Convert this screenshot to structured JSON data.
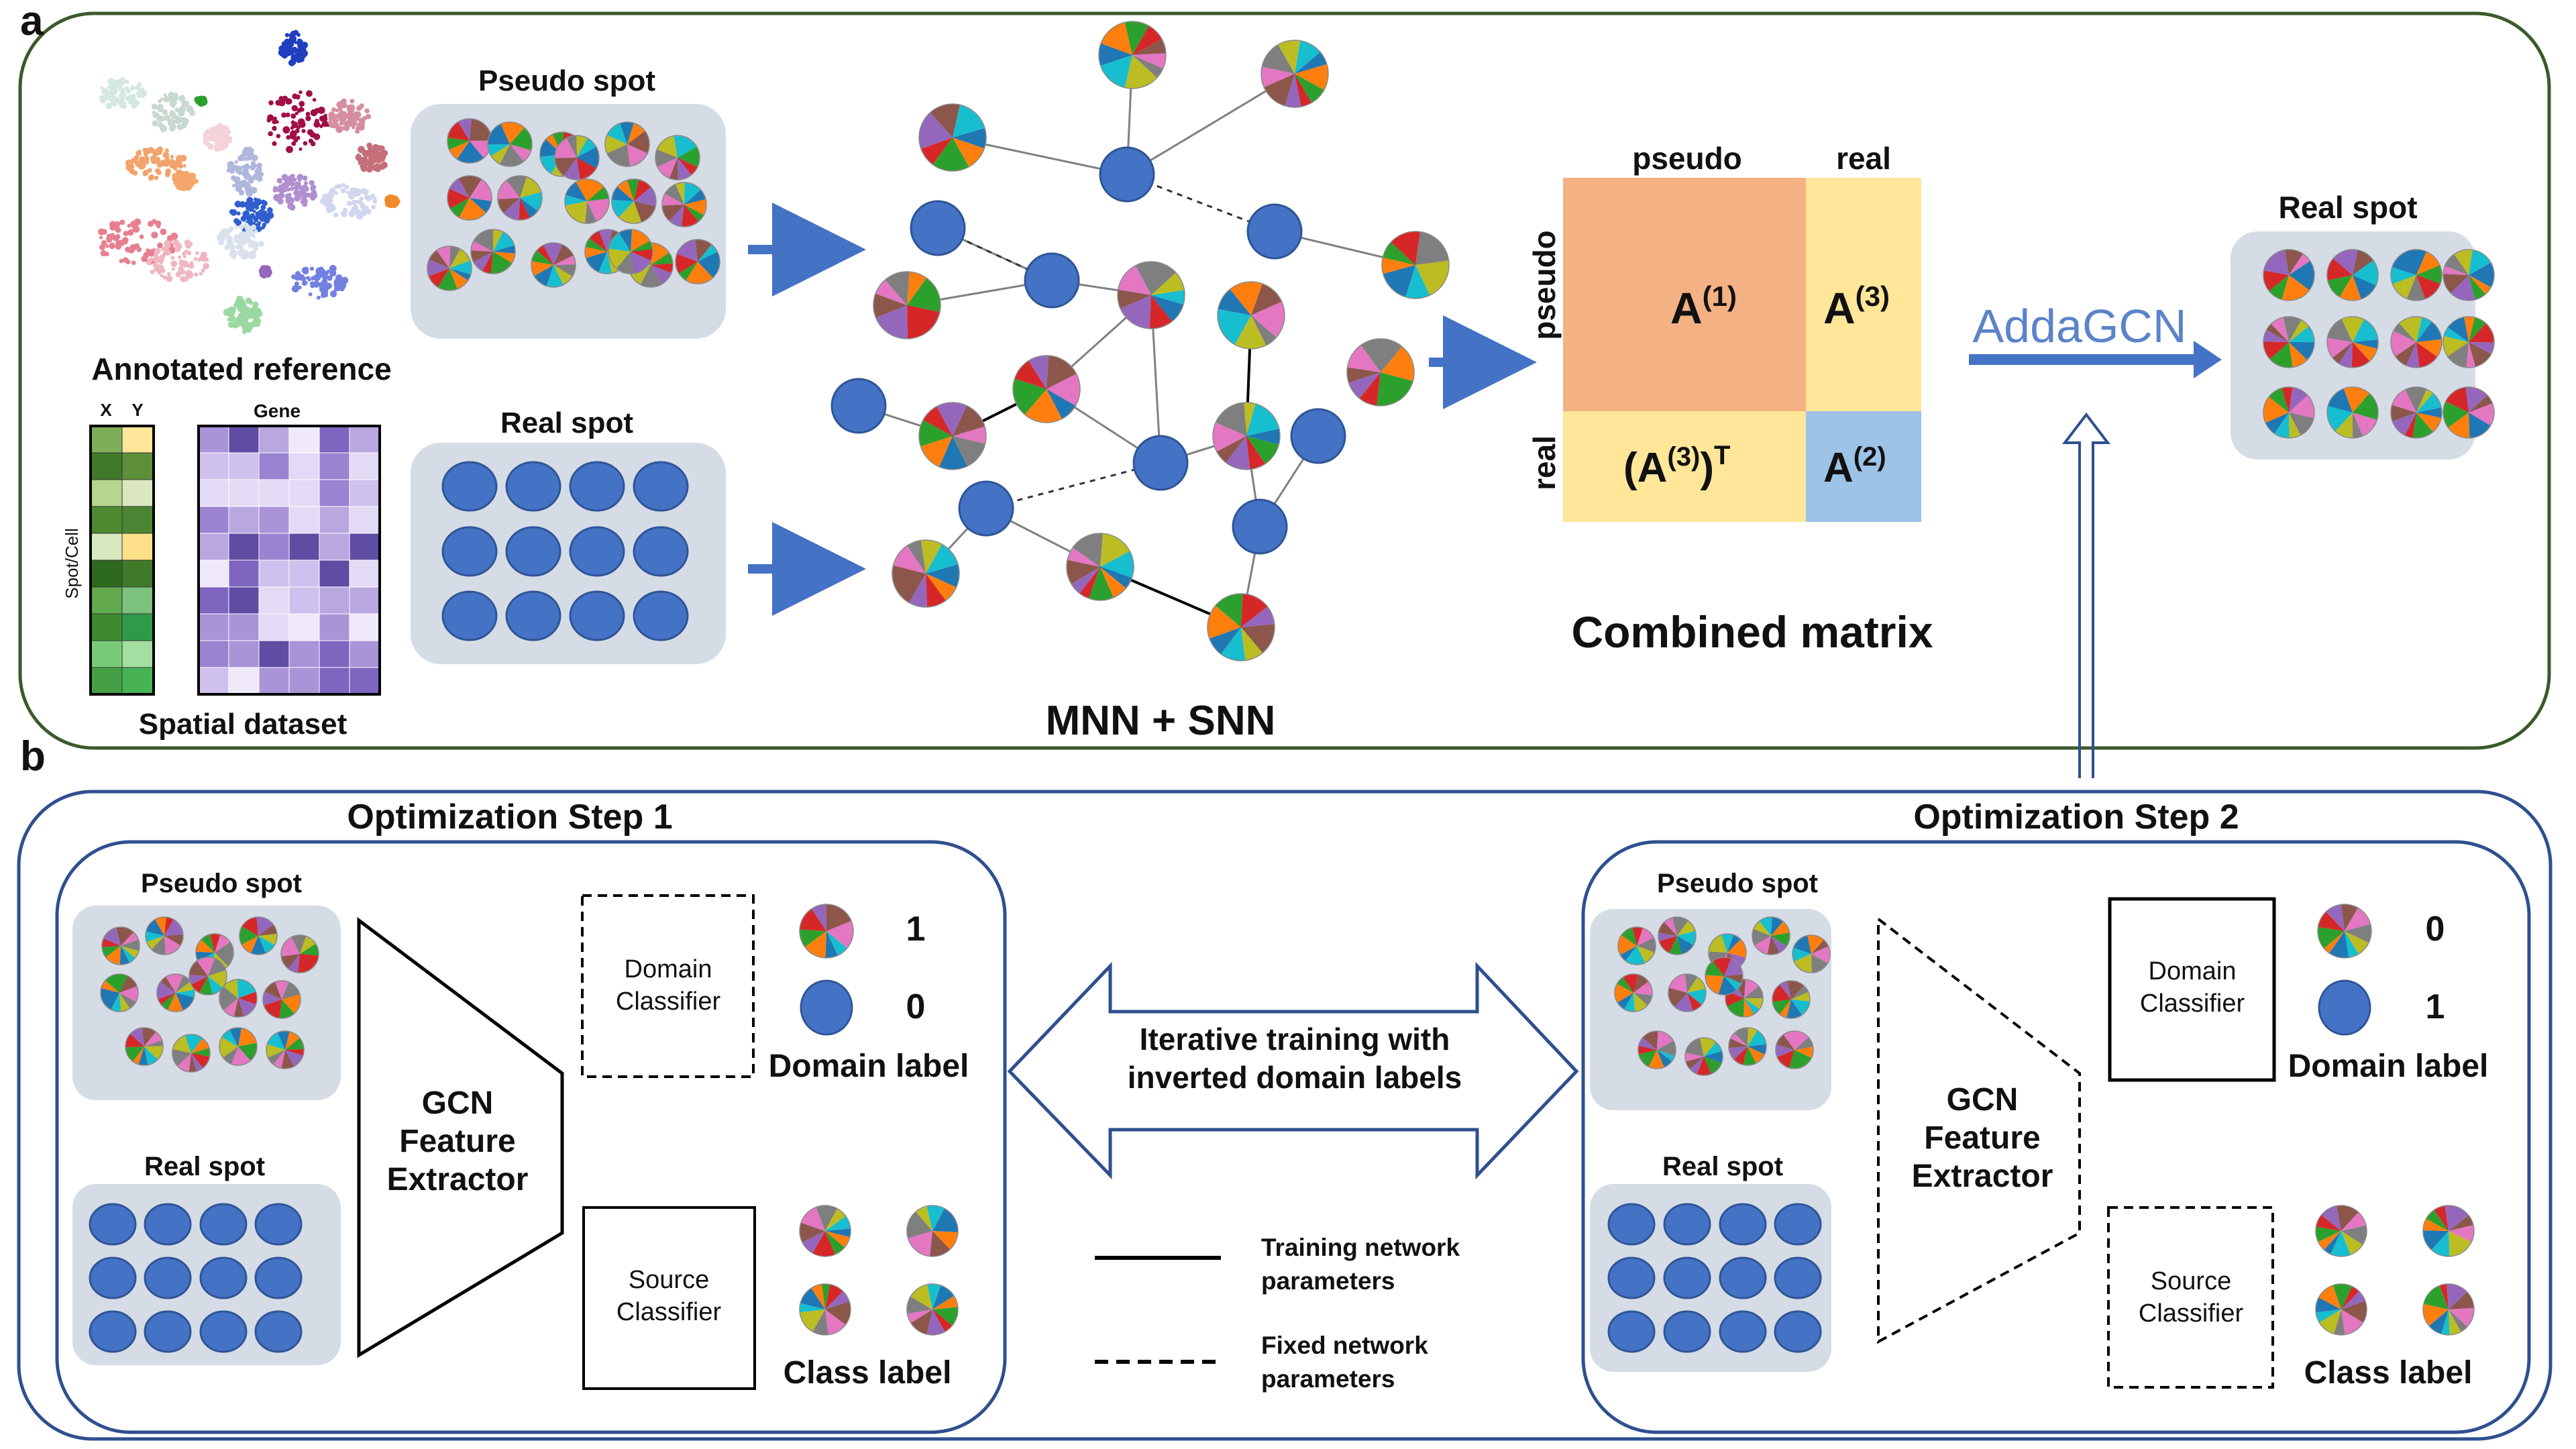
{
  "panel_a": {
    "letter": "a",
    "annotated_reference": "Annotated reference",
    "pseudo_spot": "Pseudo spot",
    "real_spot": "Real spot",
    "spatial_dataset": "Spatial dataset",
    "axis_x": "X",
    "axis_y": "Y",
    "gene": "Gene",
    "spot_cell": "Spot/Cell",
    "mnn_snn": "MNN + SNN",
    "matrix": {
      "col_pseudo": "pseudo",
      "col_real": "real",
      "row_pseudo": "pseudo",
      "row_real": "real",
      "a1": "A",
      "a1_sup": "(1)",
      "a3": "A",
      "a3_sup": "(3)",
      "a3t": "(A",
      "a3t_sup": "(3)",
      "a3t_close": ")",
      "a3t_T": "T",
      "a2": "A",
      "a2_sup": "(2)",
      "colors": {
        "a1": "#f4b183",
        "a3": "#ffe699",
        "a2": "#9dc3e6"
      }
    },
    "combined_matrix": "Combined matrix",
    "addagcn": "AddaGCN",
    "real_spot_result": "Real spot"
  },
  "panel_b": {
    "letter": "b",
    "step1": {
      "title": "Optimization Step 1",
      "pseudo_spot": "Pseudo spot",
      "real_spot": "Real spot",
      "extractor": [
        "GCN",
        "Feature",
        "Extractor"
      ],
      "domain_classifier": [
        "Domain",
        "Classifier"
      ],
      "source_classifier": [
        "Source",
        "Classifier"
      ],
      "label_pie": "1",
      "label_circle": "0",
      "domain_label": "Domain label",
      "class_label": "Class label"
    },
    "step2": {
      "title": "Optimization Step 2",
      "pseudo_spot": "Pseudo spot",
      "real_spot": "Real spot",
      "extractor": [
        "GCN",
        "Feature",
        "Extractor"
      ],
      "domain_classifier": [
        "Domain",
        "Classifier"
      ],
      "source_classifier": [
        "Source",
        "Classifier"
      ],
      "label_pie": "0",
      "label_circle": "1",
      "domain_label": "Domain label",
      "class_label": "Class label"
    },
    "iterative": [
      "Iterative training with",
      "inverted domain labels"
    ],
    "legend": {
      "solid": [
        "Training network",
        "parameters"
      ],
      "dashed": [
        "Fixed network",
        "parameters"
      ]
    }
  },
  "colors": {
    "panel_a_border": "#3b5a2a",
    "panel_b_border": "#2f4f8f",
    "spot_blue": "#4472c4",
    "spot_box": "#d6dce5",
    "arrow_blue": "#4472c4",
    "pie_palette": [
      "#1f77b4",
      "#ff7f0e",
      "#2ca02c",
      "#d62728",
      "#9467bd",
      "#8c564b",
      "#e377c2",
      "#7f7f7f",
      "#bcbd22",
      "#17becf"
    ]
  }
}
